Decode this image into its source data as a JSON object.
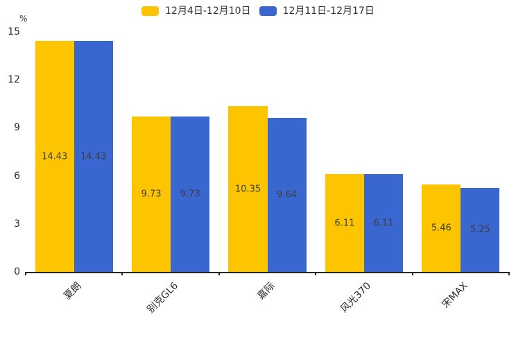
{
  "chart_data": {
    "type": "bar",
    "title": "",
    "unit_label": "%",
    "categories": [
      "夏朗",
      "别克GL6",
      "嘉际",
      "风光370",
      "宋MAX"
    ],
    "series": [
      {
        "name": "12月4日-12月10日",
        "color": "#FDC400",
        "values": [
          14.43,
          9.73,
          10.35,
          6.11,
          5.46
        ]
      },
      {
        "name": "12月11日-12月17日",
        "color": "#3A66D0",
        "values": [
          14.43,
          9.73,
          9.64,
          6.11,
          5.25
        ]
      }
    ],
    "ylim": [
      0,
      15
    ],
    "yticks": [
      0,
      3,
      6,
      9,
      12,
      15
    ],
    "legend_position": "top-center",
    "grid": false,
    "value_labels": "inside-center",
    "axis_color": "#262626",
    "label_color": "#2b2b2b",
    "value_label_color": "#3d3d3d"
  }
}
